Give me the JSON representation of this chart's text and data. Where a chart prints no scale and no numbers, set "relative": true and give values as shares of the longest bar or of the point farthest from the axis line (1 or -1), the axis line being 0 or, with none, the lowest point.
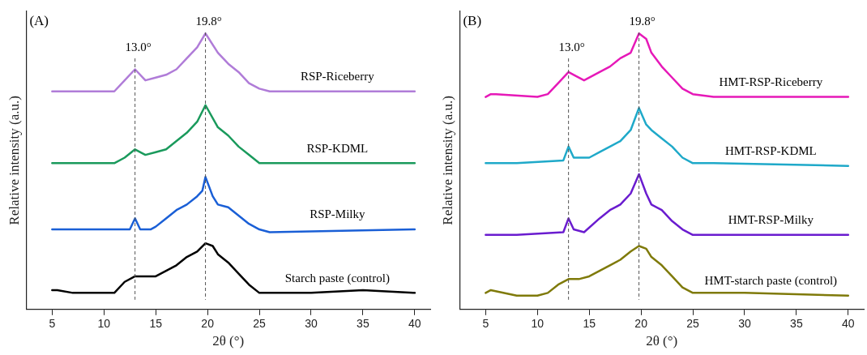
{
  "chart_data": [
    {
      "type": "line",
      "relative": true,
      "xlabel": "2θ (°)",
      "ylabel": "Relative intensity (a.u.)",
      "xlim": [
        2.5,
        41.5
      ],
      "xticks": [
        5,
        10,
        15,
        20,
        25,
        30,
        35,
        40
      ],
      "grid": false,
      "legend": false,
      "marker": "none",
      "line_style": "solid",
      "annotations": [
        "(A)"
      ],
      "ref_lines": [
        {
          "axis": "x",
          "value": 13.0,
          "label": "13.0°",
          "line_style": "dashed",
          "color": "#555555"
        },
        {
          "axis": "x",
          "value": 19.8,
          "label": "19.8°",
          "line_style": "dashed",
          "color": "#555555"
        }
      ],
      "series": [
        {
          "name": "RSP-Riceberry",
          "color": "#b07cd8",
          "x": [
            5,
            8,
            11,
            12,
            13,
            14,
            15,
            16,
            17,
            18,
            19,
            19.8,
            21,
            22,
            23,
            24,
            25,
            26,
            30,
            40
          ],
          "values": [
            0.79,
            0.79,
            0.79,
            0.83,
            0.87,
            0.83,
            0.84,
            0.85,
            0.87,
            0.91,
            0.95,
            1.0,
            0.93,
            0.89,
            0.86,
            0.82,
            0.8,
            0.79,
            0.79,
            0.79
          ]
        },
        {
          "name": "RSP-KDML",
          "color": "#1a9a5c",
          "x": [
            5,
            8,
            11,
            12,
            13,
            14,
            15,
            16,
            17,
            18,
            19,
            19.8,
            21,
            22,
            23,
            24,
            25,
            26,
            30,
            40
          ],
          "values": [
            0.53,
            0.53,
            0.53,
            0.55,
            0.58,
            0.56,
            0.57,
            0.58,
            0.61,
            0.64,
            0.68,
            0.74,
            0.66,
            0.63,
            0.59,
            0.56,
            0.53,
            0.53,
            0.53,
            0.53
          ]
        },
        {
          "name": "RSP-Milky",
          "color": "#1a5fd6",
          "x": [
            5,
            8,
            12.5,
            13,
            13.5,
            14.5,
            15,
            16,
            17,
            18,
            19,
            19.5,
            19.8,
            20.5,
            21,
            22,
            23,
            24,
            25,
            26,
            40
          ],
          "values": [
            0.29,
            0.29,
            0.29,
            0.33,
            0.29,
            0.29,
            0.3,
            0.33,
            0.36,
            0.38,
            0.41,
            0.43,
            0.48,
            0.41,
            0.38,
            0.37,
            0.34,
            0.31,
            0.29,
            0.28,
            0.29
          ]
        },
        {
          "name": "Starch paste (control)",
          "color": "#000000",
          "x": [
            5,
            5.5,
            7,
            10,
            11,
            12,
            13,
            14,
            15,
            16,
            17,
            18,
            19,
            19.8,
            20.5,
            21,
            22,
            23,
            24,
            25,
            30,
            35,
            40
          ],
          "values": [
            0.07,
            0.07,
            0.06,
            0.06,
            0.06,
            0.1,
            0.12,
            0.12,
            0.12,
            0.14,
            0.16,
            0.19,
            0.21,
            0.24,
            0.23,
            0.2,
            0.17,
            0.13,
            0.09,
            0.06,
            0.06,
            0.07,
            0.06
          ]
        }
      ]
    },
    {
      "type": "line",
      "relative": true,
      "xlabel": "2θ (°)",
      "ylabel": "Relative intensity (a.u.)",
      "xlim": [
        2.5,
        41.5
      ],
      "xticks": [
        5,
        10,
        15,
        20,
        25,
        30,
        35,
        40
      ],
      "grid": false,
      "legend": false,
      "marker": "none",
      "line_style": "solid",
      "annotations": [
        "(B)"
      ],
      "ref_lines": [
        {
          "axis": "x",
          "value": 13.0,
          "label": "13.0°",
          "line_style": "dashed",
          "color": "#555555"
        },
        {
          "axis": "x",
          "value": 19.8,
          "label": "19.8°",
          "line_style": "dashed",
          "color": "#555555"
        }
      ],
      "series": [
        {
          "name": "HMT-RSP-Riceberry",
          "color": "#e619b8",
          "x": [
            5,
            5.5,
            6,
            10,
            11,
            12,
            13,
            13.5,
            14.5,
            16,
            17,
            18,
            19,
            19.8,
            20.5,
            21,
            22,
            23,
            24,
            25,
            27,
            40
          ],
          "values": [
            0.77,
            0.78,
            0.78,
            0.77,
            0.78,
            0.82,
            0.86,
            0.85,
            0.83,
            0.86,
            0.88,
            0.91,
            0.93,
            1.0,
            0.98,
            0.93,
            0.88,
            0.84,
            0.8,
            0.78,
            0.77,
            0.77
          ]
        },
        {
          "name": "HMT-RSP-KDML",
          "color": "#1fa9c9",
          "x": [
            5,
            8,
            12.5,
            13,
            13.5,
            15,
            16,
            17,
            18,
            19,
            19.8,
            20.5,
            21,
            22,
            23,
            24,
            25,
            27,
            40
          ],
          "values": [
            0.53,
            0.53,
            0.54,
            0.59,
            0.55,
            0.55,
            0.57,
            0.59,
            0.61,
            0.65,
            0.73,
            0.67,
            0.65,
            0.62,
            0.59,
            0.55,
            0.53,
            0.53,
            0.52
          ]
        },
        {
          "name": "HMT-RSP-Milky",
          "color": "#6a1ccf",
          "x": [
            5,
            8,
            12.5,
            13,
            13.5,
            14.5,
            16,
            17,
            18,
            19,
            19.8,
            20.5,
            21,
            22,
            23,
            24,
            25,
            40
          ],
          "values": [
            0.27,
            0.27,
            0.28,
            0.33,
            0.29,
            0.28,
            0.33,
            0.36,
            0.38,
            0.42,
            0.49,
            0.42,
            0.38,
            0.36,
            0.32,
            0.29,
            0.27,
            0.27
          ]
        },
        {
          "name": "HMT-starch paste (control)",
          "color": "#7f7a0a",
          "x": [
            5,
            5.5,
            8,
            10,
            11,
            12,
            13,
            14,
            15,
            16,
            17,
            18,
            19,
            19.8,
            20.5,
            21,
            22,
            23,
            24,
            25,
            30,
            40
          ],
          "values": [
            0.06,
            0.07,
            0.05,
            0.05,
            0.06,
            0.09,
            0.11,
            0.11,
            0.12,
            0.14,
            0.16,
            0.18,
            0.21,
            0.23,
            0.22,
            0.19,
            0.16,
            0.12,
            0.08,
            0.06,
            0.06,
            0.05
          ]
        }
      ]
    }
  ]
}
